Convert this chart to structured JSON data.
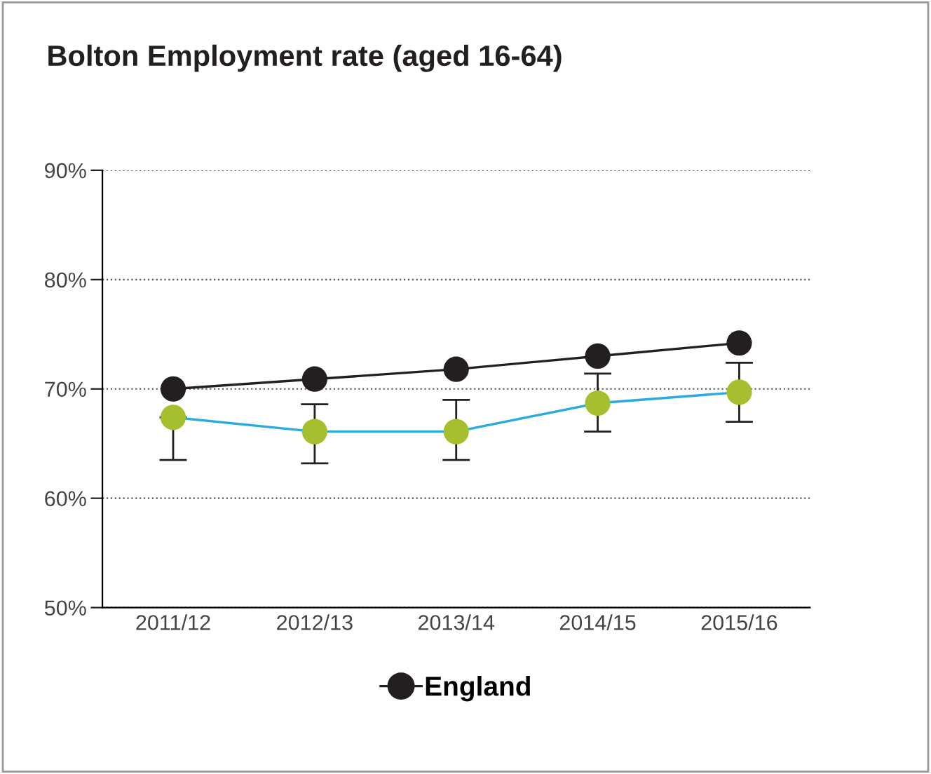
{
  "chart_data": {
    "type": "line",
    "title": "Bolton Employment rate (aged 16-64)",
    "categories": [
      "2011/12",
      "2012/13",
      "2013/14",
      "2014/15",
      "2015/16"
    ],
    "series": [
      {
        "name": "England",
        "color": "#231f20",
        "values": [
          70.0,
          70.9,
          71.8,
          73.0,
          74.2
        ]
      },
      {
        "color": "#29abe2",
        "colors": [
          "#a5bf2e",
          "#a5bf2e",
          "#a5bf2e",
          "#a5bf2e",
          "#a5bf2e"
        ],
        "values": [
          67.4,
          66.1,
          66.1,
          68.7,
          69.7
        ],
        "errors": [
          [
            63.5,
            67.4
          ],
          [
            63.2,
            68.6
          ],
          [
            63.5,
            69.0
          ],
          [
            66.1,
            71.4
          ],
          [
            67.0,
            72.4
          ]
        ]
      }
    ],
    "ylim": [
      50,
      90
    ],
    "yticks": [
      {
        "value": 50,
        "label": "50%"
      },
      {
        "value": 60,
        "label": "60%"
      },
      {
        "value": 70,
        "label": "70%"
      },
      {
        "value": 80,
        "label": "80%"
      },
      {
        "value": 90,
        "label": "90%"
      }
    ],
    "grid": "y",
    "legend": "bottom",
    "marker": "circle",
    "line_style": "solid"
  }
}
